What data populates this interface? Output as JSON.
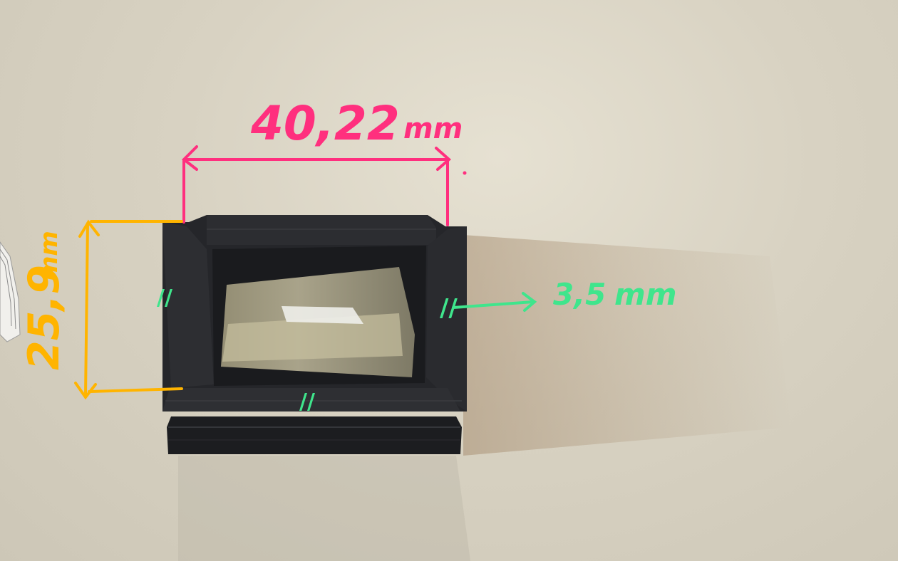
{
  "annotations": {
    "width": {
      "value": "40,22",
      "unit": "mm",
      "color": "#ff2f7e"
    },
    "height": {
      "value": "25,9",
      "unit": "mm",
      "color": "#ffb400"
    },
    "wall_thickness": {
      "value": "3,5",
      "unit": "mm",
      "color": "#3fe58c"
    },
    "equal_mark": "//"
  },
  "colors": {
    "background": "#d8d2c2",
    "object": "#202124",
    "tape": "#b9b18f"
  }
}
